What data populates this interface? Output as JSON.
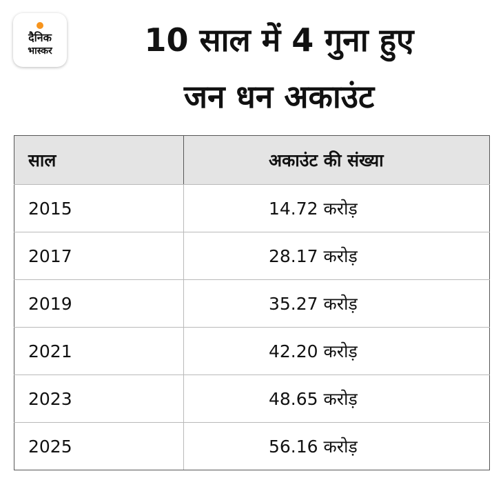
{
  "logo": {
    "line1": "दैनिक",
    "line2": "भास्कर",
    "accent_color": "#f7941d"
  },
  "title": {
    "line1": "10 साल में 4 गुना हुए",
    "line2": "जन धन अकाउंट"
  },
  "chart_data": {
    "type": "table",
    "title": "10 साल में 4 गुना हुए जन धन अकाउंट",
    "columns": [
      "साल",
      "अकाउंट की संख्या"
    ],
    "unit": "करोड़",
    "rows": [
      {
        "year": "2015",
        "value": 14.72,
        "display": "14.72 करोड़"
      },
      {
        "year": "2017",
        "value": 28.17,
        "display": "28.17 करोड़"
      },
      {
        "year": "2019",
        "value": 35.27,
        "display": "35.27 करोड़"
      },
      {
        "year": "2021",
        "value": 42.2,
        "display": "42.20 करोड़"
      },
      {
        "year": "2023",
        "value": 48.65,
        "display": "48.65 करोड़"
      },
      {
        "year": "2025",
        "value": 56.16,
        "display": "56.16 करोड़"
      }
    ],
    "header_background": "#e4e4e4"
  }
}
